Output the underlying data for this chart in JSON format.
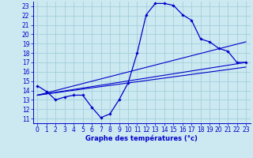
{
  "xlabel": "Graphe des températures (°c)",
  "bg_color": "#cce8f0",
  "grid_color": "#99ccd9",
  "line_color": "#0000cc",
  "axis_color": "#0000cc",
  "ylim": [
    10.5,
    23.5
  ],
  "xlim": [
    -0.5,
    23.5
  ],
  "yticks": [
    11,
    12,
    13,
    14,
    15,
    16,
    17,
    18,
    19,
    20,
    21,
    22,
    23
  ],
  "xticks": [
    0,
    1,
    2,
    3,
    4,
    5,
    6,
    7,
    8,
    9,
    10,
    11,
    12,
    13,
    14,
    15,
    16,
    17,
    18,
    19,
    20,
    21,
    22,
    23
  ],
  "curve_x": [
    0,
    1,
    2,
    3,
    4,
    5,
    6,
    7,
    8,
    9,
    10,
    11,
    12,
    13,
    14,
    15,
    16,
    17,
    18,
    19,
    20,
    21,
    22,
    23
  ],
  "curve_y": [
    14.5,
    13.9,
    13.0,
    13.3,
    13.5,
    13.5,
    12.2,
    11.1,
    11.5,
    13.0,
    14.8,
    18.0,
    22.1,
    23.3,
    23.3,
    23.1,
    22.1,
    21.5,
    19.5,
    19.2,
    18.5,
    18.2,
    17.0,
    17.0
  ],
  "trend1_x": [
    0,
    23
  ],
  "trend1_y": [
    13.5,
    19.2
  ],
  "trend2_x": [
    0,
    23
  ],
  "trend2_y": [
    13.5,
    16.5
  ],
  "trend3_x": [
    0,
    23
  ],
  "trend3_y": [
    13.5,
    17.0
  ],
  "xlabel_fontsize": 6,
  "tick_fontsize": 5.5,
  "xlabel_bold": true
}
